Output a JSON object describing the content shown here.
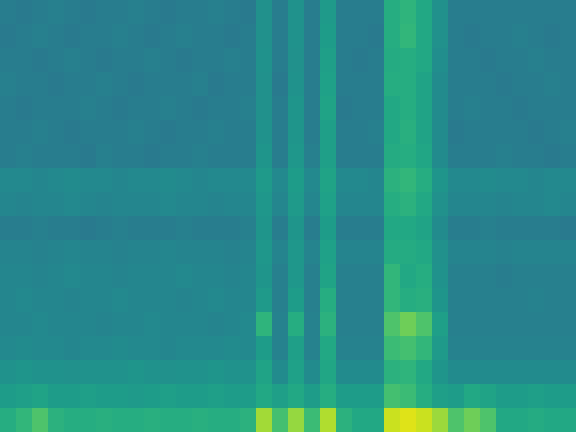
{
  "chart_data": {
    "type": "heatmap",
    "tick_labels": false,
    "color": "viridis",
    "zlim": [
      0,
      100
    ],
    "values": [
      [
        42,
        41,
        42,
        43,
        42,
        41,
        42,
        42,
        43,
        42,
        41,
        42,
        42,
        43,
        42,
        41,
        50,
        42,
        51,
        42,
        54,
        42,
        42,
        42,
        62,
        65,
        60,
        50,
        42,
        42,
        42,
        42,
        42,
        42,
        42,
        42
      ],
      [
        41,
        42,
        43,
        42,
        41,
        42,
        42,
        43,
        42,
        41,
        42,
        43,
        42,
        42,
        41,
        42,
        50,
        42,
        51,
        42,
        55,
        42,
        42,
        41,
        62,
        66,
        60,
        50,
        42,
        41,
        42,
        42,
        43,
        42,
        41,
        42
      ],
      [
        42,
        42,
        41,
        42,
        43,
        42,
        41,
        42,
        42,
        43,
        42,
        41,
        42,
        42,
        43,
        42,
        51,
        42,
        50,
        42,
        56,
        42,
        41,
        42,
        61,
        62,
        60,
        49,
        42,
        42,
        41,
        42,
        42,
        43,
        42,
        42
      ],
      [
        43,
        42,
        42,
        41,
        42,
        42,
        43,
        42,
        41,
        42,
        42,
        42,
        43,
        41,
        42,
        42,
        50,
        41,
        51,
        42,
        57,
        42,
        42,
        42,
        62,
        62,
        58,
        48,
        42,
        42,
        42,
        41,
        42,
        42,
        43,
        42
      ],
      [
        42,
        41,
        42,
        42,
        42,
        43,
        42,
        41,
        42,
        42,
        43,
        42,
        41,
        42,
        42,
        43,
        50,
        42,
        52,
        42,
        58,
        41,
        42,
        42,
        60,
        62,
        58,
        48,
        42,
        43,
        42,
        42,
        41,
        42,
        42,
        42
      ],
      [
        42,
        42,
        43,
        42,
        41,
        42,
        42,
        42,
        43,
        42,
        41,
        42,
        42,
        43,
        42,
        42,
        51,
        42,
        52,
        42,
        56,
        42,
        42,
        43,
        60,
        63,
        58,
        48,
        41,
        42,
        42,
        42,
        42,
        41,
        42,
        43
      ],
      [
        42,
        43,
        42,
        42,
        42,
        41,
        43,
        42,
        42,
        41,
        42,
        42,
        43,
        42,
        42,
        42,
        52,
        42,
        53,
        43,
        56,
        42,
        42,
        42,
        61,
        62,
        59,
        48,
        42,
        42,
        42,
        43,
        42,
        42,
        41,
        42
      ],
      [
        47,
        47,
        46,
        47,
        48,
        47,
        47,
        46,
        47,
        47,
        48,
        47,
        46,
        47,
        47,
        47,
        54,
        47,
        55,
        47,
        58,
        47,
        47,
        46,
        64,
        66,
        62,
        52,
        47,
        47,
        48,
        47,
        47,
        46,
        47,
        47
      ],
      [
        46,
        45,
        46,
        46,
        47,
        46,
        45,
        46,
        46,
        46,
        47,
        46,
        46,
        45,
        46,
        46,
        53,
        46,
        54,
        46,
        57,
        46,
        46,
        46,
        62,
        64,
        60,
        50,
        46,
        46,
        46,
        45,
        46,
        46,
        47,
        46
      ],
      [
        42,
        42,
        43,
        42,
        42,
        41,
        42,
        43,
        42,
        42,
        42,
        43,
        42,
        42,
        42,
        43,
        52,
        42,
        52,
        42,
        55,
        42,
        42,
        42,
        60,
        60,
        58,
        48,
        42,
        42,
        43,
        42,
        42,
        42,
        42,
        41
      ],
      [
        45,
        45,
        44,
        45,
        46,
        45,
        45,
        44,
        45,
        45,
        46,
        45,
        45,
        45,
        44,
        45,
        53,
        45,
        53,
        45,
        57,
        45,
        45,
        45,
        61,
        61,
        60,
        50,
        45,
        45,
        45,
        44,
        45,
        45,
        45,
        45
      ],
      [
        46,
        46,
        45,
        46,
        47,
        46,
        46,
        45,
        46,
        46,
        46,
        47,
        46,
        46,
        45,
        46,
        52,
        43,
        53,
        43,
        58,
        43,
        43,
        43,
        66,
        60,
        62,
        51,
        43,
        43,
        43,
        42,
        43,
        43,
        43,
        43
      ],
      [
        46,
        47,
        46,
        46,
        45,
        46,
        46,
        47,
        46,
        46,
        46,
        45,
        46,
        47,
        46,
        46,
        54,
        43,
        55,
        43,
        62,
        43,
        43,
        43,
        66,
        62,
        63,
        52,
        43,
        43,
        43,
        43,
        43,
        44,
        43,
        43
      ],
      [
        46,
        46,
        47,
        46,
        46,
        46,
        45,
        46,
        46,
        47,
        46,
        46,
        46,
        45,
        46,
        47,
        65,
        44,
        62,
        44,
        64,
        43,
        43,
        43,
        72,
        78,
        72,
        56,
        43,
        43,
        43,
        43,
        43,
        43,
        43,
        43
      ],
      [
        47,
        48,
        47,
        47,
        46,
        47,
        47,
        48,
        47,
        47,
        46,
        47,
        47,
        47,
        48,
        47,
        55,
        44,
        56,
        44,
        60,
        44,
        44,
        44,
        68,
        70,
        66,
        54,
        44,
        44,
        44,
        44,
        44,
        44,
        44,
        44
      ],
      [
        51,
        52,
        51,
        51,
        50,
        51,
        51,
        51,
        52,
        51,
        50,
        51,
        51,
        52,
        51,
        51,
        58,
        48,
        57,
        48,
        59,
        48,
        48,
        48,
        64,
        65,
        60,
        52,
        48,
        48,
        48,
        48,
        48,
        48,
        48,
        48
      ],
      [
        55,
        56,
        58,
        55,
        55,
        56,
        55,
        55,
        54,
        55,
        56,
        55,
        55,
        56,
        55,
        55,
        60,
        56,
        60,
        55,
        62,
        55,
        55,
        55,
        70,
        68,
        62,
        56,
        55,
        60,
        58,
        55,
        55,
        56,
        55,
        55
      ],
      [
        62,
        66,
        72,
        64,
        62,
        62,
        63,
        62,
        62,
        63,
        62,
        62,
        63,
        62,
        62,
        64,
        86,
        70,
        84,
        68,
        88,
        64,
        60,
        60,
        92,
        95,
        92,
        85,
        72,
        78,
        72,
        60,
        60,
        61,
        60,
        60
      ]
    ]
  }
}
